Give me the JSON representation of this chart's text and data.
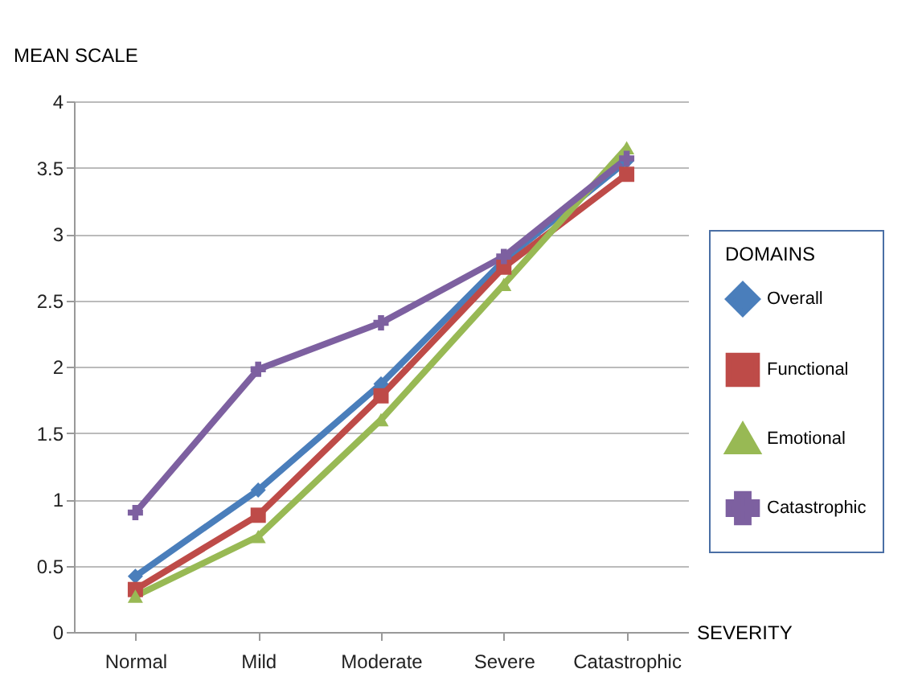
{
  "chart_data": {
    "type": "line",
    "xlabel": "SEVERITY",
    "ylabel": "MEAN SCALE",
    "legend_title": "DOMAINS",
    "categories": [
      "Normal",
      "Mild",
      "Moderate",
      "Severe",
      "Catastrophic"
    ],
    "series": [
      {
        "name": "Overall",
        "color": "#4a7ebb",
        "marker": "diamond",
        "values": [
          0.42,
          1.07,
          1.87,
          2.8,
          3.55
        ]
      },
      {
        "name": "Functional",
        "color": "#be4b48",
        "marker": "square",
        "values": [
          0.32,
          0.88,
          1.78,
          2.75,
          3.45
        ]
      },
      {
        "name": "Emotional",
        "color": "#98b954",
        "marker": "triangle",
        "values": [
          0.27,
          0.72,
          1.6,
          2.62,
          3.65
        ]
      },
      {
        "name": "Catastrophic",
        "color": "#7d60a0",
        "marker": "cross",
        "values": [
          0.9,
          1.98,
          2.33,
          2.83,
          3.57
        ]
      }
    ],
    "ylim": [
      0,
      4
    ],
    "yticks": [
      0,
      0.5,
      1,
      1.5,
      2,
      2.5,
      3,
      3.5,
      4
    ],
    "grid": "y",
    "legend": "right",
    "line_style": "solid"
  }
}
